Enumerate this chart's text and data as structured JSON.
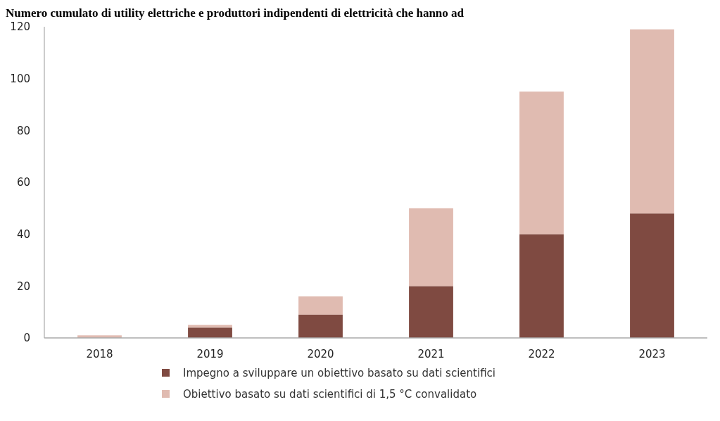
{
  "chart_data": {
    "type": "bar",
    "title": "Numero cumulato di utility elettriche e produttori indipendenti di elettricità che hanno ad",
    "categories": [
      "2018",
      "2019",
      "2020",
      "2021",
      "2022",
      "2023"
    ],
    "stacked": true,
    "series": [
      {
        "name": "Impegno a sviluppare un obiettivo basato su dati scientifici",
        "color": "#7f4a41",
        "values": [
          0,
          4,
          9,
          20,
          40,
          48
        ]
      },
      {
        "name": "Obiettivo basato su dati scientifici di 1,5 °C convalidato",
        "color": "#e0bbb1",
        "values": [
          1,
          1,
          7,
          30,
          55,
          71
        ]
      }
    ],
    "ylim": [
      0,
      120
    ],
    "yticks": [
      0,
      20,
      40,
      60,
      80,
      100,
      120
    ],
    "grid": false,
    "legend": "bottom"
  }
}
